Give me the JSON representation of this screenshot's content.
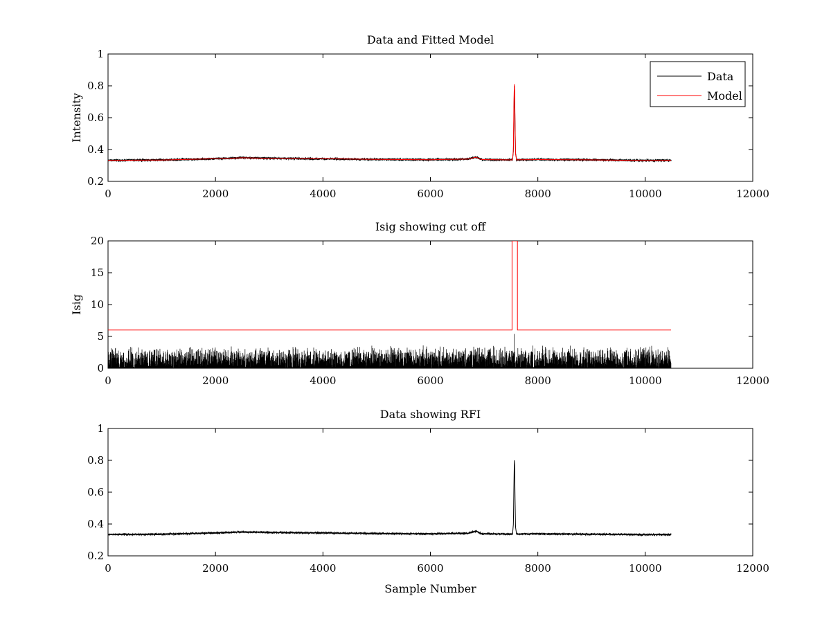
{
  "chart_data": [
    {
      "type": "line",
      "title": "Data and Fitted Model",
      "xlabel": "",
      "ylabel": "Intensity",
      "xlim": [
        0,
        12000
      ],
      "ylim": [
        0.2,
        1
      ],
      "xticks": [
        0,
        2000,
        4000,
        6000,
        8000,
        10000,
        12000
      ],
      "yticks": [
        0.2,
        0.4,
        0.6,
        0.8,
        1
      ],
      "grid": false,
      "legend": "top-right",
      "series": [
        {
          "name": "Data",
          "color": "#000000",
          "baseline": {
            "x": [
              0,
              1000,
              2000,
              2500,
              3000,
              4000,
              5000,
              6000,
              6700,
              6850,
              6950,
              7500,
              8000,
              9000,
              10000,
              10480
            ],
            "y": [
              0.332,
              0.334,
              0.342,
              0.348,
              0.345,
              0.342,
              0.338,
              0.336,
              0.34,
              0.352,
              0.337,
              0.335,
              0.337,
              0.335,
              0.331,
              0.332
            ]
          },
          "noise_amplitude": 0.006,
          "peak": {
            "x": [
              7530,
              7545,
              7555,
              7562,
              7568,
              7575,
              7585,
              7600
            ],
            "y": [
              0.34,
              0.39,
              0.62,
              0.8,
              0.77,
              0.56,
              0.38,
              0.345
            ]
          }
        },
        {
          "name": "Model",
          "color": "#ff0000",
          "baseline": {
            "x": [
              0,
              1000,
              2000,
              2500,
              3000,
              4000,
              5000,
              6000,
              6700,
              6850,
              6950,
              7500,
              8000,
              9000,
              10000,
              10480
            ],
            "y": [
              0.332,
              0.334,
              0.342,
              0.348,
              0.345,
              0.342,
              0.338,
              0.336,
              0.34,
              0.352,
              0.337,
              0.335,
              0.337,
              0.335,
              0.331,
              0.332
            ]
          },
          "noise_amplitude": 0.0,
          "peak": {
            "x": [
              7530,
              7545,
              7555,
              7562,
              7568,
              7575,
              7585,
              7600
            ],
            "y": [
              0.34,
              0.4,
              0.7,
              0.81,
              0.77,
              0.6,
              0.37,
              0.345
            ]
          }
        }
      ]
    },
    {
      "type": "line",
      "title": "Isig showing cut off",
      "xlabel": "",
      "ylabel": "Isig",
      "xlim": [
        0,
        12000
      ],
      "ylim": [
        0,
        20
      ],
      "xticks": [
        0,
        2000,
        4000,
        6000,
        8000,
        10000,
        12000
      ],
      "yticks": [
        0,
        5,
        10,
        15,
        20
      ],
      "grid": false,
      "series": [
        {
          "color": "#000000",
          "x_range": [
            0,
            10480
          ],
          "noise_max": 3.6,
          "spike": {
            "x": 7560,
            "y": 5.4
          }
        },
        {
          "color": "#ff0000",
          "x": [
            0,
            7520,
            7520,
            7620,
            7620,
            10480
          ],
          "y": [
            6,
            6,
            20,
            20,
            6,
            6
          ]
        }
      ]
    },
    {
      "type": "line",
      "title": "Data showing RFI",
      "xlabel": "Sample Number",
      "ylabel": "",
      "xlim": [
        0,
        12000
      ],
      "ylim": [
        0.2,
        1
      ],
      "xticks": [
        0,
        2000,
        4000,
        6000,
        8000,
        10000,
        12000
      ],
      "yticks": [
        0.2,
        0.4,
        0.6,
        0.8,
        1
      ],
      "grid": false,
      "series": [
        {
          "color": "#000000",
          "baseline": {
            "x": [
              0,
              1000,
              2000,
              2500,
              3000,
              4000,
              5000,
              6000,
              6700,
              6850,
              6950,
              7500,
              8000,
              9000,
              10000,
              10480
            ],
            "y": [
              0.334,
              0.336,
              0.344,
              0.35,
              0.347,
              0.344,
              0.34,
              0.338,
              0.342,
              0.354,
              0.339,
              0.337,
              0.338,
              0.336,
              0.333,
              0.334
            ]
          },
          "noise_amplitude": 0.005,
          "peak": {
            "x": [
              7530,
              7545,
              7555,
              7562,
              7568,
              7575,
              7585,
              7600
            ],
            "y": [
              0.34,
              0.4,
              0.65,
              0.8,
              0.77,
              0.58,
              0.38,
              0.345
            ]
          }
        }
      ]
    }
  ]
}
